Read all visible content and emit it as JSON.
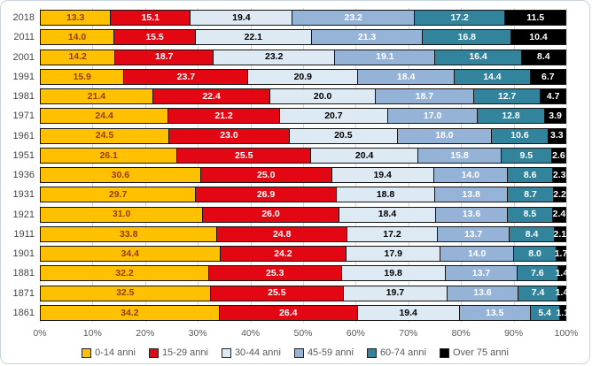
{
  "chart_data": {
    "type": "bar",
    "stacked": true,
    "orientation": "horizontal",
    "title": "",
    "xlabel": "",
    "ylabel": "",
    "grid": true,
    "legend_position": "bottom",
    "x_axis": {
      "min": 0,
      "max": 100,
      "tick_step": 10,
      "ticks": [
        "0%",
        "10%",
        "20%",
        "30%",
        "40%",
        "50%",
        "60%",
        "70%",
        "80%",
        "90%",
        "100%"
      ]
    },
    "categories": [
      "2018",
      "2011",
      "2001",
      "1991",
      "1981",
      "1971",
      "1961",
      "1951",
      "1936",
      "1931",
      "1921",
      "1911",
      "1901",
      "1881",
      "1871",
      "1861"
    ],
    "series": [
      {
        "name": "0-14 anni",
        "color": "#FFC000",
        "label_color": "#963C0E",
        "values": [
          13.3,
          14.0,
          14.2,
          15.9,
          21.4,
          24.4,
          24.5,
          26.1,
          30.6,
          29.7,
          31.0,
          33.8,
          34.4,
          32.2,
          32.5,
          34.2
        ]
      },
      {
        "name": "15-29 anni",
        "color": "#E30613",
        "label_color": "#FFFFFF",
        "values": [
          15.1,
          15.5,
          18.7,
          23.7,
          22.4,
          21.2,
          23.0,
          25.5,
          25.0,
          26.9,
          26.0,
          24.8,
          24.2,
          25.3,
          25.5,
          26.4
        ]
      },
      {
        "name": "30-44 anni",
        "color": "#DEEAF3",
        "label_color": "#000000",
        "values": [
          19.4,
          22.1,
          23.2,
          20.9,
          20.0,
          20.7,
          20.5,
          20.4,
          19.4,
          18.8,
          18.4,
          17.2,
          17.9,
          19.8,
          19.7,
          19.4
        ]
      },
      {
        "name": "45-59 anni",
        "color": "#95B3D7",
        "label_color": "#FFFFFF",
        "values": [
          23.2,
          21.3,
          19.1,
          18.4,
          18.7,
          17.0,
          18.0,
          15.8,
          14.0,
          13.8,
          13.6,
          13.7,
          14.0,
          13.7,
          13.6,
          13.5
        ]
      },
      {
        "name": "60-74 anni",
        "color": "#31849B",
        "label_color": "#FFFFFF",
        "values": [
          17.2,
          16.8,
          16.4,
          14.4,
          12.7,
          12.8,
          10.6,
          9.5,
          8.6,
          8.7,
          8.5,
          8.4,
          8.0,
          7.6,
          7.4,
          5.4
        ]
      },
      {
        "name": "Over 75 anni",
        "color": "#000000",
        "label_color": "#FFFFFF",
        "values": [
          11.5,
          10.4,
          8.4,
          6.7,
          4.7,
          3.9,
          3.3,
          2.6,
          2.3,
          2.2,
          2.4,
          2.1,
          1.7,
          1.4,
          1.4,
          1.1
        ]
      }
    ],
    "colors": {
      "gridline": "#D9D9D9",
      "segment_border": "#141414",
      "axis_text": "#595959",
      "category_text": "#464646",
      "frame_border": "#C9D4DE",
      "background": "#FFFFFF"
    }
  }
}
